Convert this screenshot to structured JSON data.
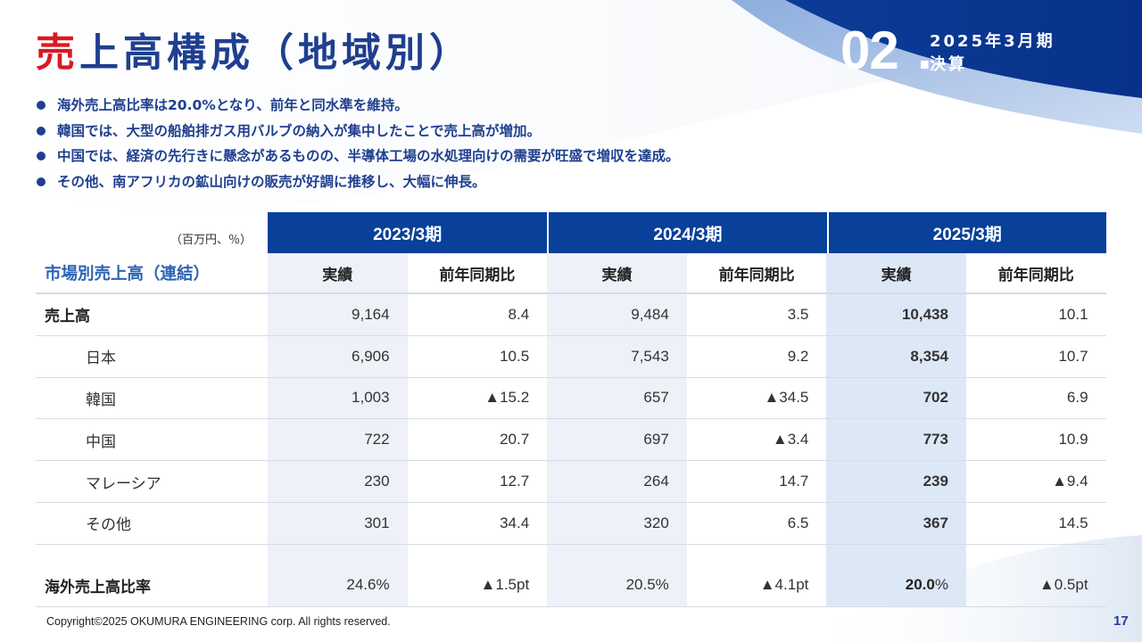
{
  "title": {
    "accent": "売",
    "rest": "上高構成（地域別）"
  },
  "section": {
    "number": "02",
    "dot": ".",
    "line1": "2025年3月期",
    "line2": "決算"
  },
  "bullets": [
    "海外売上高比率は20.0%となり、前年と同水準を維持。",
    "韓国では、大型の船舶排ガス用バルブの納入が集中したことで売上高が増加。",
    "中国では、経済の先行きに懸念があるものの、半導体工場の水処理向けの需要が旺盛で増収を達成。",
    "その他、南アフリカの鉱山向けの販売が好調に推移し、大幅に伸長。"
  ],
  "table": {
    "unit": "（百万円、％）",
    "years": [
      "2023/3期",
      "2024/3期",
      "2025/3期"
    ],
    "section_label": "市場別売上高（連結）",
    "sub_headers": [
      "実績",
      "前年同期比",
      "実績",
      "前年同期比",
      "実績",
      "前年同期比"
    ],
    "rows": [
      {
        "label": "売上高",
        "values": [
          "9,164",
          "8.4",
          "9,484",
          "3.5",
          "10,438",
          "10.1"
        ]
      },
      {
        "label": "日本",
        "values": [
          "6,906",
          "10.5",
          "7,543",
          "9.2",
          "8,354",
          "10.7"
        ]
      },
      {
        "label": "韓国",
        "values": [
          "1,003",
          "▲15.2",
          "657",
          "▲34.5",
          "702",
          "6.9"
        ]
      },
      {
        "label": "中国",
        "values": [
          "722",
          "20.7",
          "697",
          "▲3.4",
          "773",
          "10.9"
        ]
      },
      {
        "label": "マレーシア",
        "values": [
          "230",
          "12.7",
          "264",
          "14.7",
          "239",
          "▲9.4"
        ]
      },
      {
        "label": "その他",
        "values": [
          "301",
          "34.4",
          "320",
          "6.5",
          "367",
          "14.5"
        ]
      }
    ],
    "ratio_row": {
      "label": "海外売上高比率",
      "values": [
        "24.6%",
        "▲1.5pt",
        "20.5%",
        "▲4.1pt",
        "20.0",
        "▲0.5pt"
      ],
      "pct_suffix": "%"
    }
  },
  "footer": "Copyright©2025 OKUMURA ENGINEERING corp. All rights reserved.",
  "page_number": "17",
  "colors": {
    "primary": "#1f3f8f",
    "accent_red": "#d91a21",
    "header_blue": "#08409a",
    "label_blue": "#2d63b4",
    "highlight": "#dde8f7"
  }
}
